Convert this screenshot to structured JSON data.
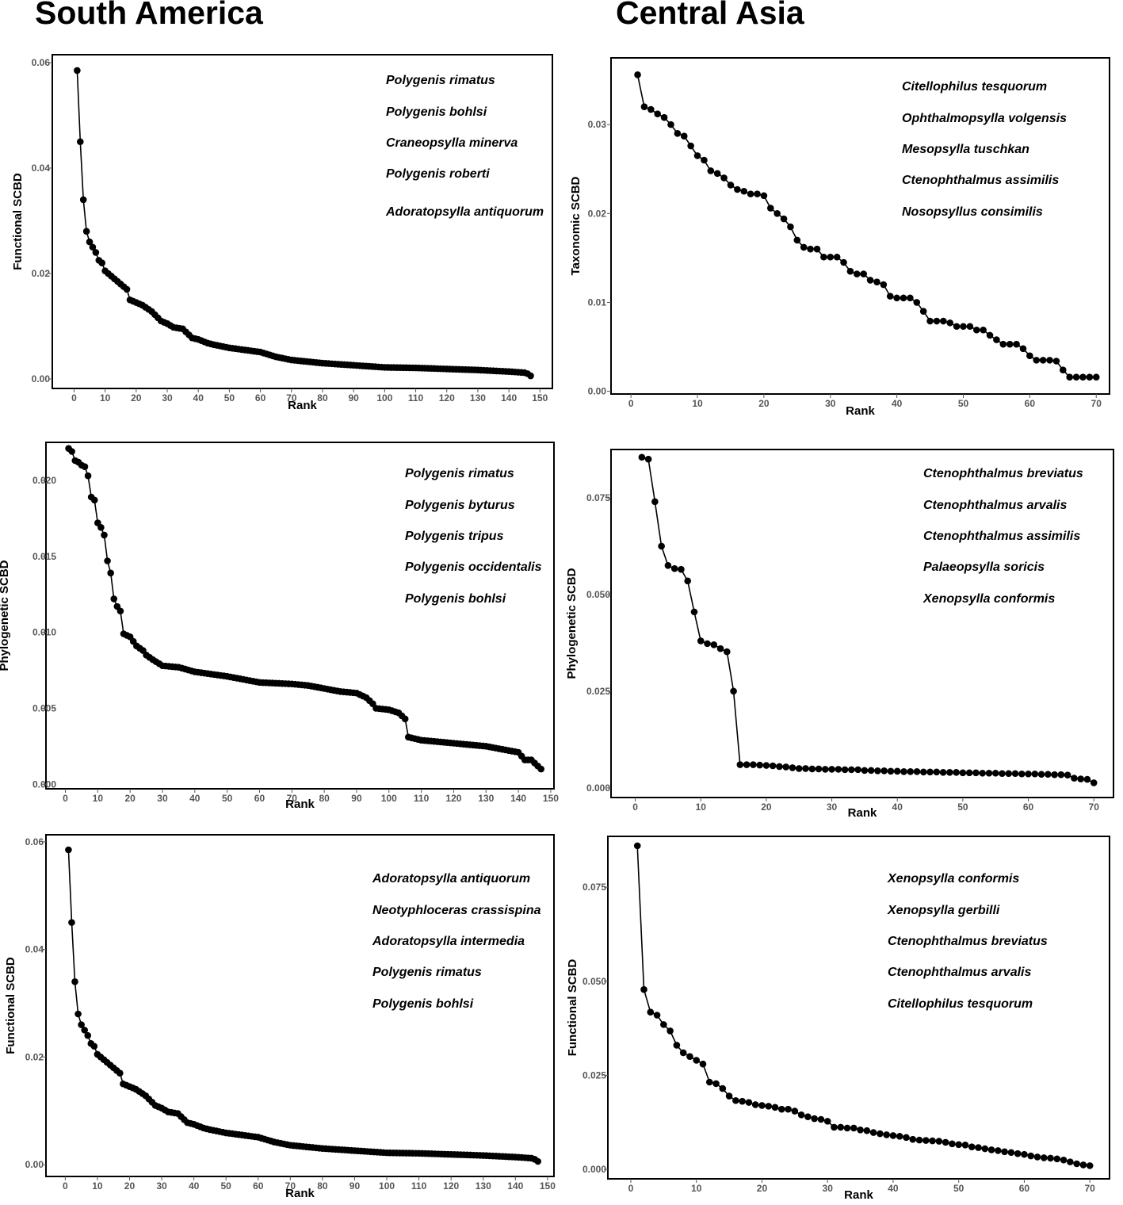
{
  "regions": {
    "left": "South America",
    "right": "Central Asia"
  },
  "style": {
    "point_color": "#000000",
    "line_color": "#000000",
    "frame_color": "#000000",
    "tick_color": "#555555"
  },
  "chart_data": [
    {
      "id": "sa-top",
      "type": "line",
      "region": "South America",
      "xlabel": "Rank",
      "ylabel": "Functional SCBD",
      "xlim": [
        -7,
        154
      ],
      "ylim": [
        -0.0018,
        0.0615
      ],
      "xticks": [
        0,
        10,
        20,
        30,
        40,
        50,
        60,
        70,
        80,
        90,
        100,
        110,
        120,
        130,
        140,
        150
      ],
      "yticks": [
        0.0,
        0.02,
        0.04,
        0.06
      ],
      "ytick_labels": [
        "0.00",
        "0.02",
        "0.04",
        "0.06"
      ],
      "n": 147,
      "anchors": [
        [
          1,
          0.0585
        ],
        [
          2,
          0.045
        ],
        [
          3,
          0.034
        ],
        [
          4,
          0.028
        ],
        [
          5,
          0.026
        ],
        [
          6,
          0.025
        ],
        [
          7,
          0.024
        ],
        [
          8,
          0.0225
        ],
        [
          9,
          0.022
        ],
        [
          10,
          0.0205
        ],
        [
          11,
          0.02
        ],
        [
          13,
          0.019
        ],
        [
          15,
          0.018
        ],
        [
          17,
          0.017
        ],
        [
          18,
          0.015
        ],
        [
          20,
          0.0145
        ],
        [
          22,
          0.014
        ],
        [
          25,
          0.0128
        ],
        [
          28,
          0.011
        ],
        [
          30,
          0.0105
        ],
        [
          32,
          0.0098
        ],
        [
          35,
          0.0095
        ],
        [
          38,
          0.0078
        ],
        [
          40,
          0.0075
        ],
        [
          43,
          0.0068
        ],
        [
          45,
          0.0065
        ],
        [
          50,
          0.0059
        ],
        [
          55,
          0.0055
        ],
        [
          60,
          0.0051
        ],
        [
          65,
          0.0042
        ],
        [
          70,
          0.0036
        ],
        [
          80,
          0.003
        ],
        [
          90,
          0.0026
        ],
        [
          100,
          0.0022
        ],
        [
          110,
          0.0021
        ],
        [
          120,
          0.0019
        ],
        [
          130,
          0.0017
        ],
        [
          140,
          0.0014
        ],
        [
          145,
          0.0012
        ],
        [
          146,
          0.001
        ],
        [
          147,
          0.0006
        ]
      ],
      "legend": [
        "Polygenis rimatus",
        "Polygenis bohlsi",
        "Craneopsylla minerva",
        "Polygenis roberti",
        "Adoratopsylla antiquorum"
      ]
    },
    {
      "id": "ca-top",
      "type": "line",
      "region": "Central Asia",
      "xlabel": "Rank",
      "ylabel": "Taxonomic SCBD",
      "xlim": [
        -3,
        72
      ],
      "ylim": [
        -0.0003,
        0.0375
      ],
      "xticks": [
        0,
        10,
        20,
        30,
        40,
        50,
        60,
        70
      ],
      "yticks": [
        0.0,
        0.01,
        0.02,
        0.03
      ],
      "ytick_labels": [
        "0.00",
        "0.01",
        "0.02",
        "0.03"
      ],
      "n": 70,
      "values": [
        0.0356,
        0.032,
        0.0317,
        0.0312,
        0.0308,
        0.03,
        0.029,
        0.0287,
        0.0276,
        0.0265,
        0.026,
        0.0248,
        0.0245,
        0.024,
        0.0232,
        0.0227,
        0.0225,
        0.0222,
        0.0222,
        0.022,
        0.0206,
        0.02,
        0.0194,
        0.0185,
        0.017,
        0.0162,
        0.016,
        0.016,
        0.0151,
        0.0151,
        0.0151,
        0.0145,
        0.0135,
        0.0132,
        0.0132,
        0.0125,
        0.0123,
        0.012,
        0.0107,
        0.0105,
        0.0105,
        0.0105,
        0.01,
        0.009,
        0.0079,
        0.0079,
        0.0079,
        0.0077,
        0.0073,
        0.0073,
        0.0073,
        0.0069,
        0.0069,
        0.0063,
        0.0058,
        0.0053,
        0.0053,
        0.0053,
        0.0048,
        0.004,
        0.0035,
        0.0035,
        0.0035,
        0.0034,
        0.0024,
        0.0016,
        0.0016,
        0.0016,
        0.0016,
        0.0016
      ],
      "legend": [
        "Citellophilus tesquorum",
        "Ophthalmopsylla volgensis",
        "Mesopsylla tuschkan",
        "Ctenophthalmus assimilis",
        "Nosopsyllus consimilis"
      ]
    },
    {
      "id": "sa-mid",
      "type": "line",
      "region": "South America",
      "xlabel": "Rank",
      "ylabel": "Phylogenetic SCBD",
      "xlim": [
        -6,
        151
      ],
      "ylim": [
        -0.0003,
        0.0225
      ],
      "xticks": [
        0,
        10,
        20,
        30,
        40,
        50,
        60,
        70,
        80,
        90,
        100,
        110,
        120,
        130,
        140,
        150
      ],
      "yticks": [
        0.0,
        0.005,
        0.01,
        0.015,
        0.02
      ],
      "ytick_labels": [
        "0.000",
        "0.005",
        "0.010",
        "0.015",
        "0.020"
      ],
      "n": 147,
      "anchors": [
        [
          1,
          0.0221
        ],
        [
          2,
          0.0219
        ],
        [
          3,
          0.0213
        ],
        [
          4,
          0.0212
        ],
        [
          5,
          0.021
        ],
        [
          6,
          0.0209
        ],
        [
          7,
          0.0203
        ],
        [
          8,
          0.0189
        ],
        [
          9,
          0.0187
        ],
        [
          10,
          0.0172
        ],
        [
          11,
          0.0169
        ],
        [
          12,
          0.0164
        ],
        [
          13,
          0.0147
        ],
        [
          14,
          0.0139
        ],
        [
          15,
          0.0122
        ],
        [
          16,
          0.0117
        ],
        [
          17,
          0.0114
        ],
        [
          18,
          0.0099
        ],
        [
          20,
          0.0097
        ],
        [
          22,
          0.0091
        ],
        [
          24,
          0.0088
        ],
        [
          25,
          0.0085
        ],
        [
          27,
          0.0082
        ],
        [
          30,
          0.0078
        ],
        [
          35,
          0.0077
        ],
        [
          40,
          0.0074
        ],
        [
          50,
          0.0071
        ],
        [
          60,
          0.0067
        ],
        [
          70,
          0.0066
        ],
        [
          75,
          0.0065
        ],
        [
          80,
          0.0063
        ],
        [
          85,
          0.0061
        ],
        [
          90,
          0.006
        ],
        [
          93,
          0.0057
        ],
        [
          95,
          0.0053
        ],
        [
          96,
          0.005
        ],
        [
          100,
          0.0049
        ],
        [
          103,
          0.0047
        ],
        [
          105,
          0.0043
        ],
        [
          106,
          0.0031
        ],
        [
          110,
          0.0029
        ],
        [
          120,
          0.0027
        ],
        [
          130,
          0.0025
        ],
        [
          140,
          0.0021
        ],
        [
          142,
          0.0016
        ],
        [
          144,
          0.0016
        ],
        [
          146,
          0.0012
        ],
        [
          147,
          0.001
        ]
      ],
      "legend": [
        "Polygenis rimatus",
        "Polygenis byturus",
        "Polygenis tripus",
        "Polygenis occidentalis",
        "Polygenis bohlsi"
      ]
    },
    {
      "id": "ca-mid",
      "type": "line",
      "region": "Central Asia",
      "xlabel": "Rank",
      "ylabel": "Phylogenetic SCBD",
      "xlim": [
        -3.7,
        73
      ],
      "ylim": [
        -0.0025,
        0.0875
      ],
      "xticks": [
        0,
        10,
        20,
        30,
        40,
        50,
        60,
        70
      ],
      "yticks": [
        0.0,
        0.025,
        0.05,
        0.075
      ],
      "ytick_labels": [
        "0.000",
        "0.025",
        "0.050",
        "0.075"
      ],
      "n": 70,
      "values": [
        0.0855,
        0.085,
        0.074,
        0.0625,
        0.0575,
        0.0567,
        0.0565,
        0.0535,
        0.0455,
        0.038,
        0.0373,
        0.037,
        0.036,
        0.0352,
        0.025,
        0.006,
        0.006,
        0.006,
        0.0059,
        0.0058,
        0.0057,
        0.0055,
        0.0054,
        0.0052,
        0.005,
        0.005,
        0.0049,
        0.0049,
        0.0048,
        0.0048,
        0.0048,
        0.0047,
        0.0047,
        0.0047,
        0.0045,
        0.0045,
        0.0044,
        0.0044,
        0.0043,
        0.0043,
        0.0042,
        0.0042,
        0.0042,
        0.0041,
        0.0041,
        0.0041,
        0.004,
        0.004,
        0.004,
        0.0039,
        0.0039,
        0.0039,
        0.0038,
        0.0038,
        0.0038,
        0.0037,
        0.0037,
        0.0037,
        0.0036,
        0.0036,
        0.0036,
        0.0035,
        0.0035,
        0.0034,
        0.0034,
        0.0033,
        0.0025,
        0.0023,
        0.0022,
        0.0013
      ],
      "legend": [
        "Ctenophthalmus breviatus",
        "Ctenophthalmus arvalis",
        "Ctenophthalmus assimilis",
        "Palaeopsylla soricis",
        "Xenopsylla conformis"
      ]
    },
    {
      "id": "sa-bot",
      "type": "line",
      "region": "South America",
      "xlabel": "Rank",
      "ylabel": "Functional SCBD",
      "xlim": [
        -6,
        152
      ],
      "ylim": [
        -0.0022,
        0.0613
      ],
      "xticks": [
        0,
        10,
        20,
        30,
        40,
        50,
        60,
        70,
        80,
        90,
        100,
        110,
        120,
        130,
        140,
        150
      ],
      "yticks": [
        0.0,
        0.02,
        0.04,
        0.06
      ],
      "ytick_labels": [
        "0.00",
        "0.02",
        "0.04",
        "0.06"
      ],
      "n": 147,
      "anchors": [
        [
          1,
          0.0585
        ],
        [
          2,
          0.045
        ],
        [
          3,
          0.034
        ],
        [
          4,
          0.028
        ],
        [
          5,
          0.026
        ],
        [
          6,
          0.025
        ],
        [
          7,
          0.024
        ],
        [
          8,
          0.0225
        ],
        [
          9,
          0.022
        ],
        [
          10,
          0.0205
        ],
        [
          11,
          0.02
        ],
        [
          13,
          0.019
        ],
        [
          15,
          0.018
        ],
        [
          17,
          0.017
        ],
        [
          18,
          0.015
        ],
        [
          20,
          0.0145
        ],
        [
          22,
          0.014
        ],
        [
          25,
          0.0128
        ],
        [
          28,
          0.011
        ],
        [
          30,
          0.0105
        ],
        [
          32,
          0.0098
        ],
        [
          35,
          0.0095
        ],
        [
          38,
          0.0078
        ],
        [
          40,
          0.0075
        ],
        [
          43,
          0.0068
        ],
        [
          45,
          0.0065
        ],
        [
          50,
          0.0059
        ],
        [
          55,
          0.0055
        ],
        [
          60,
          0.0051
        ],
        [
          65,
          0.0042
        ],
        [
          70,
          0.0036
        ],
        [
          80,
          0.003
        ],
        [
          90,
          0.0026
        ],
        [
          100,
          0.0022
        ],
        [
          110,
          0.0021
        ],
        [
          120,
          0.0019
        ],
        [
          130,
          0.0017
        ],
        [
          140,
          0.0014
        ],
        [
          145,
          0.0012
        ],
        [
          146,
          0.001
        ],
        [
          147,
          0.0006
        ]
      ],
      "legend": [
        "Adoratopsylla antiquorum",
        "Neotyphloceras crassispina",
        "Adoratopsylla intermedia",
        "Polygenis rimatus",
        "Polygenis bohlsi"
      ]
    },
    {
      "id": "ca-bot",
      "type": "line",
      "region": "Central Asia",
      "xlabel": "Rank",
      "ylabel": "Functional SCBD",
      "xlim": [
        -3.5,
        73
      ],
      "ylim": [
        -0.0025,
        0.0885
      ],
      "xticks": [
        0,
        10,
        20,
        30,
        40,
        50,
        60,
        70
      ],
      "yticks": [
        0.0,
        0.025,
        0.05,
        0.075
      ],
      "ytick_labels": [
        "0.000",
        "0.025",
        "0.050",
        "0.075"
      ],
      "n": 70,
      "values": [
        0.086,
        0.0478,
        0.0418,
        0.041,
        0.0385,
        0.0368,
        0.033,
        0.031,
        0.03,
        0.029,
        0.028,
        0.0232,
        0.0228,
        0.0215,
        0.0195,
        0.0183,
        0.0181,
        0.0178,
        0.0172,
        0.017,
        0.0168,
        0.0165,
        0.016,
        0.016,
        0.0155,
        0.0145,
        0.014,
        0.0135,
        0.0133,
        0.0128,
        0.0112,
        0.0112,
        0.011,
        0.011,
        0.0105,
        0.0103,
        0.0098,
        0.0095,
        0.0092,
        0.009,
        0.0088,
        0.0085,
        0.008,
        0.0078,
        0.0077,
        0.0076,
        0.0075,
        0.0072,
        0.0068,
        0.0066,
        0.0065,
        0.006,
        0.0058,
        0.0055,
        0.0052,
        0.005,
        0.0047,
        0.0045,
        0.0042,
        0.004,
        0.0036,
        0.0033,
        0.0031,
        0.003,
        0.0028,
        0.0025,
        0.002,
        0.0015,
        0.0012,
        0.001
      ],
      "legend": [
        "Xenopsylla conformis",
        "Xenopsylla gerbilli",
        "Ctenophthalmus breviatus",
        "Ctenophthalmus arvalis",
        "Citellophilus tesquorum"
      ]
    }
  ]
}
